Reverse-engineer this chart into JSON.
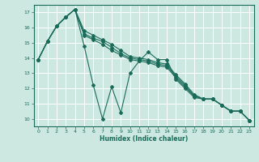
{
  "xlabel": "Humidex (Indice chaleur)",
  "xlim": [
    -0.5,
    23.5
  ],
  "ylim": [
    9.5,
    17.5
  ],
  "xticks": [
    0,
    1,
    2,
    3,
    4,
    5,
    6,
    7,
    8,
    9,
    10,
    11,
    12,
    13,
    14,
    15,
    16,
    17,
    18,
    19,
    20,
    21,
    22,
    23
  ],
  "yticks": [
    10,
    11,
    12,
    13,
    14,
    15,
    16,
    17
  ],
  "background_color": "#cce8e0",
  "grid_color": "#aad4cc",
  "line_color": "#1a6b5a",
  "lines": [
    {
      "x": [
        0,
        1,
        2,
        3,
        4,
        5,
        6,
        7,
        8,
        9,
        10,
        11,
        12,
        13,
        14,
        15,
        16,
        17,
        18,
        19,
        20,
        21,
        22,
        23
      ],
      "y": [
        13.9,
        15.1,
        16.1,
        16.7,
        17.2,
        14.8,
        12.2,
        10.0,
        12.1,
        10.4,
        13.0,
        13.8,
        14.4,
        13.9,
        13.9,
        12.6,
        12.0,
        11.4,
        11.3,
        11.3,
        10.9,
        10.5,
        10.5,
        9.9
      ]
    },
    {
      "x": [
        0,
        1,
        2,
        3,
        4,
        5,
        6,
        7,
        8,
        9,
        10,
        11,
        12,
        13,
        14,
        15,
        16,
        17,
        18,
        19,
        20,
        21,
        22,
        23
      ],
      "y": [
        13.9,
        15.1,
        16.1,
        16.7,
        17.2,
        15.5,
        15.2,
        14.9,
        14.5,
        14.2,
        13.9,
        13.8,
        13.7,
        13.5,
        13.4,
        12.7,
        12.1,
        11.5,
        11.3,
        11.3,
        10.9,
        10.5,
        10.5,
        9.9
      ]
    },
    {
      "x": [
        0,
        1,
        2,
        3,
        4,
        5,
        6,
        7,
        8,
        9,
        10,
        11,
        12,
        13,
        14,
        15,
        16,
        17,
        18,
        19,
        20,
        21,
        22,
        23
      ],
      "y": [
        13.9,
        15.1,
        16.1,
        16.7,
        17.2,
        15.6,
        15.3,
        15.1,
        14.7,
        14.3,
        14.0,
        13.9,
        13.8,
        13.6,
        13.5,
        12.8,
        12.2,
        11.5,
        11.3,
        11.3,
        10.9,
        10.5,
        10.5,
        9.9
      ]
    },
    {
      "x": [
        0,
        1,
        2,
        3,
        4,
        5,
        6,
        7,
        8,
        9,
        10,
        11,
        12,
        13,
        14,
        15,
        16,
        17,
        18,
        19,
        20,
        21,
        22,
        23
      ],
      "y": [
        13.9,
        15.1,
        16.1,
        16.7,
        17.2,
        15.8,
        15.5,
        15.2,
        14.9,
        14.5,
        14.1,
        14.0,
        13.9,
        13.7,
        13.6,
        12.9,
        12.3,
        11.6,
        11.3,
        11.3,
        10.9,
        10.5,
        10.5,
        9.9
      ]
    }
  ]
}
